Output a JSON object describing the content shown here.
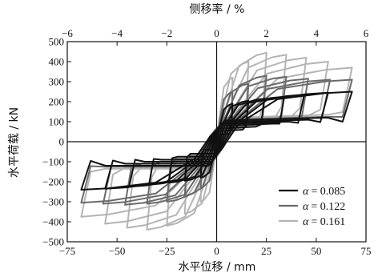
{
  "chart_data": {
    "type": "line",
    "xlabel": "水平位移 / mm",
    "ylabel": "水平荷载 / kN",
    "x2label": "侧移率 / %",
    "xlim": [
      -75,
      75
    ],
    "ylim": [
      -500,
      500
    ],
    "x2lim": [
      -6,
      6
    ],
    "xticks": [
      "−75",
      "−50",
      "−25",
      "0",
      "25",
      "50",
      "75"
    ],
    "yticks": [
      "−500",
      "−400",
      "−300",
      "−200",
      "−100",
      "0",
      "100",
      "200",
      "300",
      "400",
      "500"
    ],
    "x2ticks": [
      "−6",
      "−4",
      "−2",
      "0",
      "2",
      "4",
      "6"
    ],
    "grid": false,
    "legend_position": "bottom-right",
    "series": [
      {
        "name": "α = 0.085",
        "legend_symbol": "α",
        "legend_value": "= 0.085",
        "color": "#111111",
        "loops": [
          {
            "dmax": 8,
            "fpos": 190,
            "fneg": -180,
            "res": 40
          },
          {
            "dmax": 16,
            "fpos": 205,
            "fneg": -195,
            "res": 60
          },
          {
            "dmax": 24,
            "fpos": 215,
            "fneg": -205,
            "res": 75
          },
          {
            "dmax": 34,
            "fpos": 225,
            "fneg": -215,
            "res": 90
          },
          {
            "dmax": 44,
            "fpos": 235,
            "fneg": -225,
            "res": 100
          },
          {
            "dmax": 56,
            "fpos": 245,
            "fneg": -235,
            "res": 110
          },
          {
            "dmax": 68,
            "fpos": 250,
            "fneg": -240,
            "res": 120
          }
        ]
      },
      {
        "name": "α = 0.122",
        "legend_symbol": "α",
        "legend_value": "= 0.122",
        "color": "#6a6a6a",
        "loops": [
          {
            "dmax": 8,
            "fpos": 250,
            "fneg": -230,
            "res": 50
          },
          {
            "dmax": 16,
            "fpos": 290,
            "fneg": -270,
            "res": 70
          },
          {
            "dmax": 25,
            "fpos": 330,
            "fneg": -300,
            "res": 85
          },
          {
            "dmax": 35,
            "fpos": 325,
            "fneg": -310,
            "res": 100
          },
          {
            "dmax": 46,
            "fpos": 315,
            "fneg": -315,
            "res": 110
          },
          {
            "dmax": 57,
            "fpos": 310,
            "fneg": -310,
            "res": 120
          },
          {
            "dmax": 68,
            "fpos": 310,
            "fneg": -305,
            "res": 125
          }
        ]
      },
      {
        "name": "α = 0.161",
        "legend_symbol": "α",
        "legend_value": "= 0.161",
        "color": "#b4b4b4",
        "loops": [
          {
            "dmax": 8,
            "fpos": 320,
            "fneg": -300,
            "res": 60
          },
          {
            "dmax": 16,
            "fpos": 400,
            "fneg": -360,
            "res": 80
          },
          {
            "dmax": 25,
            "fpos": 445,
            "fneg": -420,
            "res": 95
          },
          {
            "dmax": 35,
            "fpos": 435,
            "fneg": -440,
            "res": 110
          },
          {
            "dmax": 45,
            "fpos": 420,
            "fneg": -430,
            "res": 120
          },
          {
            "dmax": 56,
            "fpos": 400,
            "fneg": -410,
            "res": 130
          },
          {
            "dmax": 68,
            "fpos": 370,
            "fneg": -375,
            "res": 135
          }
        ]
      }
    ]
  }
}
